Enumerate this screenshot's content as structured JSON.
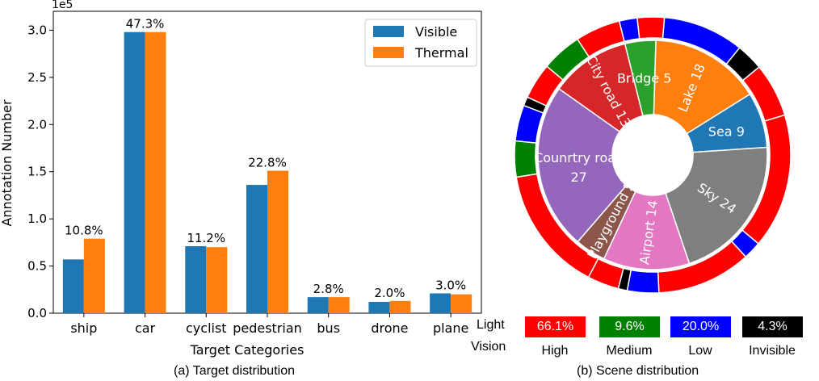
{
  "captions": {
    "left": "(a) Target distribution",
    "right": "(b) Scene distribution"
  },
  "light_legend": {
    "row_label_1": "Light",
    "row_label_2": "Vision",
    "items": [
      {
        "name": "High",
        "value": "66.1%",
        "color": "#ff0000"
      },
      {
        "name": "Medium",
        "value": "9.6%",
        "color": "#008000"
      },
      {
        "name": "Low",
        "value": "20.0%",
        "color": "#0000ff"
      },
      {
        "name": "Invisible",
        "value": "4.3%",
        "color": "#000000"
      }
    ]
  },
  "chart_data": [
    {
      "type": "bar",
      "title": "",
      "xlabel": "Target Categories",
      "ylabel": "Annotation Number",
      "y_exponent_label": "1e5",
      "ylim": [
        0,
        3.2
      ],
      "yticks": [
        "0.0",
        "0.5",
        "1.0",
        "1.5",
        "2.0",
        "2.5",
        "3.0"
      ],
      "categories": [
        "ship",
        "car",
        "cyclist",
        "pedestrian",
        "bus",
        "drone",
        "plane"
      ],
      "series": [
        {
          "name": "Visible",
          "color": "#1f77b4",
          "values": [
            0.57,
            2.98,
            0.71,
            1.36,
            0.17,
            0.12,
            0.21
          ]
        },
        {
          "name": "Thermal",
          "color": "#ff7f0e",
          "values": [
            0.79,
            2.98,
            0.7,
            1.51,
            0.17,
            0.13,
            0.2
          ]
        }
      ],
      "bar_labels": [
        "10.8%",
        "47.3%",
        "11.2%",
        "22.8%",
        "2.8%",
        "2.0%",
        "3.0%"
      ],
      "legend_position": "top-right"
    },
    {
      "type": "pie",
      "style": "nested-donut",
      "inner_slices": [
        {
          "label": "Bridge 5",
          "value": 5,
          "color": "#2ca02c"
        },
        {
          "label": "Lake 18",
          "value": 18,
          "color": "#ff7f0e"
        },
        {
          "label": "Sea 9",
          "value": 9,
          "color": "#1f77b4"
        },
        {
          "label": "Sky 24",
          "value": 24,
          "color": "#7f7f7f"
        },
        {
          "label": "Airport 14",
          "value": 14,
          "color": "#e377c2"
        },
        {
          "label": "Playground 5",
          "value": 5,
          "color": "#8c564b"
        },
        {
          "label": "Counrtry road 27",
          "value": 27,
          "color": "#9467bd"
        },
        {
          "label": "City road 13",
          "value": 13,
          "color": "#d62728"
        }
      ],
      "outer_ring": [
        {
          "light": "Low",
          "value": 2,
          "color": "#0000ff"
        },
        {
          "light": "High",
          "value": 3,
          "color": "#ff0000"
        },
        {
          "light": "Low",
          "value": 9,
          "color": "#0000ff"
        },
        {
          "light": "Invisible",
          "value": 3,
          "color": "#000000"
        },
        {
          "light": "High",
          "value": 6,
          "color": "#ff0000"
        },
        {
          "light": "High",
          "value": 15,
          "color": "#ff0000"
        },
        {
          "light": "Low",
          "value": 2,
          "color": "#0000ff"
        },
        {
          "light": "High",
          "value": 10.5,
          "color": "#ff0000"
        },
        {
          "light": "Low",
          "value": 3.5,
          "color": "#0000ff"
        },
        {
          "light": "Invisible",
          "value": 1,
          "color": "#000000"
        },
        {
          "light": "High",
          "value": 3.5,
          "color": "#ff0000"
        },
        {
          "light": "High",
          "value": 14,
          "color": "#ff0000"
        },
        {
          "light": "Medium",
          "value": 4,
          "color": "#008000"
        },
        {
          "light": "Low",
          "value": 4,
          "color": "#0000ff"
        },
        {
          "light": "Invisible",
          "value": 1,
          "color": "#000000"
        },
        {
          "light": "High",
          "value": 4,
          "color": "#ff0000"
        },
        {
          "light": "Medium",
          "value": 4.5,
          "color": "#008000"
        },
        {
          "light": "High",
          "value": 5,
          "color": "#ff0000"
        }
      ]
    }
  ]
}
